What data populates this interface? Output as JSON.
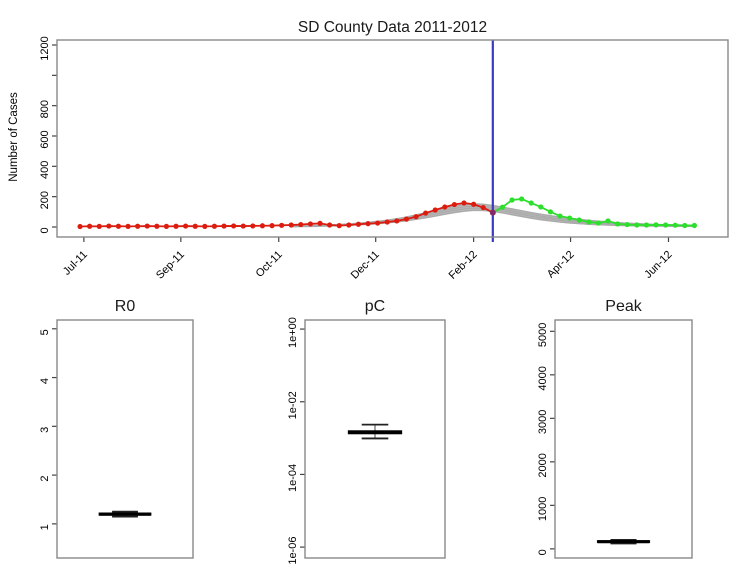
{
  "window": {
    "background": "#ffffff"
  },
  "chart_data": [
    {
      "id": "timeseries",
      "type": "line",
      "title": "SD County Data 2011-2012",
      "xlabel": "",
      "ylabel": "Number of Cases",
      "x_unit": "week-index",
      "xlim": [
        -2.4,
        67.5
      ],
      "ylim": [
        -66,
        1233
      ],
      "grid": false,
      "y_ticks": [
        0,
        200,
        400,
        600,
        800,
        1000,
        1200
      ],
      "y_tick_labels": [
        "0",
        "200",
        "400",
        "600",
        "800",
        "",
        "1200"
      ],
      "x_ticks": [
        0.4,
        10.5,
        20.7,
        30.8,
        41.0,
        51.1,
        61.3
      ],
      "x_tick_labels": [
        "Jul-11",
        "Sep-11",
        "Oct-11",
        "Dec-11",
        "Feb-12",
        "Apr-12",
        "Jun-12"
      ],
      "vline_x": 43,
      "vline_color": "#3a3ac4",
      "junction_color": "#832a68",
      "series": [
        {
          "name": "observed-cases",
          "color": "#dd1c10",
          "x_start": 0,
          "values": [
            3,
            5,
            4,
            6,
            5,
            4,
            5,
            6,
            5,
            4,
            5,
            6,
            5,
            4,
            5,
            6,
            7,
            6,
            7,
            8,
            9,
            11,
            13,
            16,
            20,
            24,
            13,
            9,
            13,
            18,
            22,
            26,
            33,
            40,
            52,
            68,
            92,
            112,
            132,
            148,
            158,
            150,
            128,
            95
          ]
        },
        {
          "name": "post-forecast-cases",
          "color": "#2bdf2b",
          "x_start": 43,
          "values": [
            95,
            130,
            178,
            185,
            158,
            132,
            100,
            72,
            59,
            46,
            33,
            26,
            40,
            20,
            16,
            13,
            13,
            14,
            13,
            12,
            10,
            10
          ]
        }
      ],
      "band": {
        "name": "simulation-envelope",
        "fill": "#bdbdbd",
        "strand_color": "#aaaaaa",
        "x_start": 0,
        "upper": [
          0,
          0,
          0,
          0,
          0,
          0,
          0,
          0,
          0,
          0,
          0,
          0,
          0,
          0,
          0,
          0,
          0,
          0,
          0,
          0,
          0,
          0,
          5,
          7,
          9,
          12,
          15,
          18,
          22,
          27,
          33,
          40,
          48,
          58,
          70,
          84,
          99,
          114,
          129,
          142,
          152,
          157,
          155,
          147,
          136,
          124,
          112,
          100,
          89,
          79,
          70,
          62,
          54,
          48,
          42,
          37,
          32,
          28,
          25,
          22,
          19,
          17,
          15,
          14,
          13
        ],
        "lower": [
          0,
          0,
          0,
          0,
          0,
          0,
          0,
          0,
          0,
          0,
          0,
          0,
          0,
          0,
          0,
          0,
          0,
          0,
          0,
          0,
          0,
          0,
          1,
          2,
          3,
          4,
          5,
          7,
          9,
          12,
          15,
          19,
          24,
          30,
          37,
          46,
          56,
          67,
          79,
          90,
          99,
          105,
          104,
          98,
          88,
          76,
          64,
          53,
          43,
          35,
          28,
          22,
          18,
          14,
          11,
          9,
          7,
          6,
          5,
          4,
          4,
          3,
          3,
          3,
          2
        ]
      }
    },
    {
      "id": "r0",
      "type": "boxplot",
      "title": "R0",
      "scale": "linear",
      "ylim": [
        0.3,
        5.18
      ],
      "ticks": [
        1,
        2,
        3,
        4,
        5
      ],
      "tick_labels": [
        "1",
        "2",
        "3",
        "4",
        "5"
      ],
      "stats": {
        "median": 1.2,
        "q1": 1.18,
        "q3": 1.22,
        "whisker_low": 1.15,
        "whisker_high": 1.25
      }
    },
    {
      "id": "pc",
      "type": "boxplot",
      "title": "pC",
      "scale": "log10",
      "ylim": [
        -6.3,
        0.25
      ],
      "ticks": [
        0,
        -2,
        -4,
        -6
      ],
      "tick_labels": [
        "1e+00",
        "1e-02",
        "1e-04",
        "1e-06"
      ],
      "stats": {
        "median": -2.84,
        "q1": -2.88,
        "q3": -2.8,
        "whisker_low": -3.01,
        "whisker_high": -2.63
      },
      "values_readout": {
        "median": "1.4e-03",
        "whisker_low": "9.8e-04",
        "whisker_high": "2.4e-03"
      }
    },
    {
      "id": "peak",
      "type": "boxplot",
      "title": "Peak",
      "scale": "linear",
      "ylim": [
        -210,
        5260
      ],
      "ticks": [
        0,
        1000,
        2000,
        3000,
        4000,
        5000
      ],
      "tick_labels": [
        "0",
        "1000",
        "2000",
        "3000",
        "4000",
        "5000"
      ],
      "stats": {
        "median": 165,
        "q1": 150,
        "q3": 185,
        "whisker_low": 125,
        "whisker_high": 205
      }
    }
  ]
}
